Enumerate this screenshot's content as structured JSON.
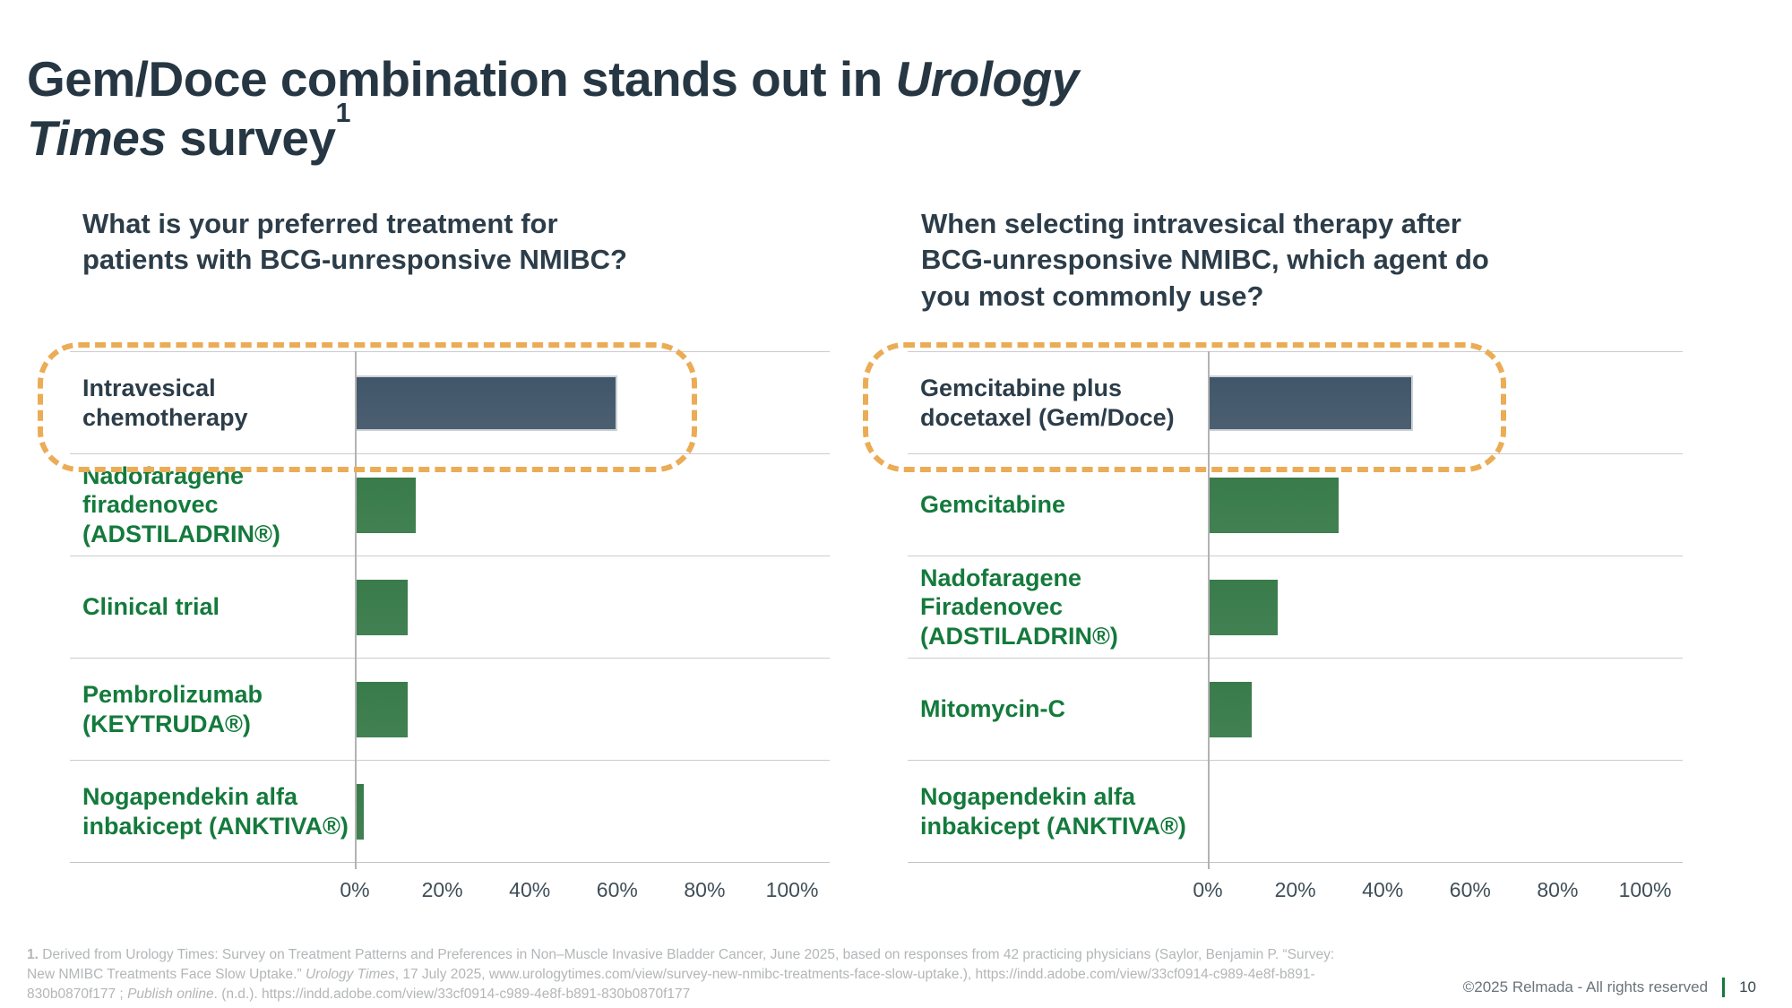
{
  "slide": {
    "title": {
      "part1": "Gem/Doce combination stands out in ",
      "italic_line1": "Urology",
      "italic_line2": "Times",
      "part2": " survey",
      "footnote_ref": "1"
    },
    "footnote": {
      "marker": "1.",
      "line1": " Derived from Urology Times: Survey on Treatment Patterns and Preferences in Non–Muscle Invasive Bladder Cancer, June 2025, based on responses from 42 practicing physicians (Saylor, Benjamin P. “Survey:",
      "line2_pre": "New NMIBC Treatments Face Slow Uptake.” ",
      "line2_italic": "Urology Times",
      "line2_post": ", 17 July 2025, www.urologytimes.com/view/survey-new-nmibc-treatments-face-slow-uptake.), https://indd.adobe.com/view/33cf0914-c989-4e8f-b891-",
      "line3_pre": "830b0870f177 ; ",
      "line3_italic": "Publish online",
      "line3_post": ". (n.d.). https://indd.adobe.com/view/33cf0914-c989-4e8f-b891-830b0870f177"
    },
    "footer": {
      "copyright": "©2025 Relmada - All rights reserved",
      "page_number": "10"
    }
  },
  "colors": {
    "title_text": "#263743",
    "dark_label": "#2c3d49",
    "green_label": "#147a3c",
    "dark_bar": "#46596b",
    "green_bar": "#3c7d4d",
    "highlight_dotted": "#ebac56",
    "gridline": "#cccccc",
    "tick_text": "#3f4e58",
    "footnote_text": "#b3b6b8"
  },
  "chart_data": [
    {
      "type": "bar",
      "orientation": "horizontal",
      "title": "What is your preferred treatment for patients with BCG-unresponsive NMIBC?",
      "categories": [
        "Intravesical chemotherapy",
        "Nadofaragene firadenovec (ADSTILADRIN®)",
        "Clinical trial",
        "Pembrolizumab (KEYTRUDA®)",
        "Nogapendekin alfa inbakicept (ANKTIVA®)"
      ],
      "values": [
        60,
        14,
        12,
        12,
        2
      ],
      "unit": "%",
      "xlim": [
        0,
        100
      ],
      "x_tick_labels": [
        "0%",
        "20%",
        "40%",
        "60%",
        "80%",
        "100%"
      ],
      "grid": "row separators on, vertical axis line at 0%",
      "legend": "none",
      "highlighted_index": 0,
      "highlight_style": "orange dotted rounded outline around top row",
      "bar_color_highlighted": "#46596b",
      "bar_color_default": "#3c7d4d"
    },
    {
      "type": "bar",
      "orientation": "horizontal",
      "title": "When selecting intravesical therapy after BCG-unresponsive NMIBC, which agent do you most commonly use?",
      "categories": [
        "Gemcitabine plus docetaxel (Gem/Doce)",
        "Gemcitabine",
        "Nadofaragene Firadenovec (ADSTILADRIN®)",
        "Mitomycin-C",
        "Nogapendekin alfa inbakicept (ANKTIVA®)"
      ],
      "values": [
        47,
        30,
        16,
        10,
        0
      ],
      "unit": "%",
      "xlim": [
        0,
        100
      ],
      "x_tick_labels": [
        "0%",
        "20%",
        "40%",
        "60%",
        "80%",
        "100%"
      ],
      "grid": "row separators on, vertical axis line at 0%",
      "legend": "none",
      "highlighted_index": 0,
      "highlight_style": "orange dotted rounded outline around top row",
      "bar_color_highlighted": "#46596b",
      "bar_color_default": "#3c7d4d"
    }
  ]
}
